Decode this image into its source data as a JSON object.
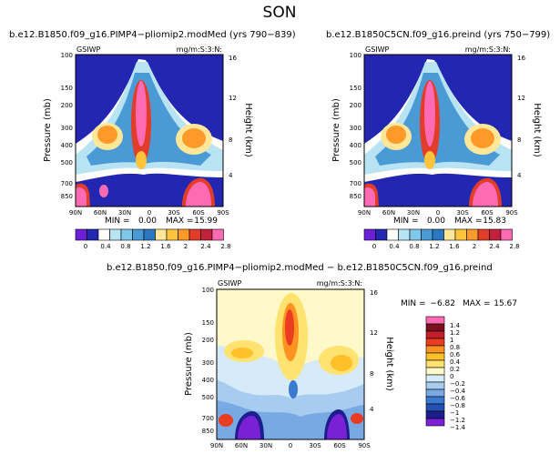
{
  "title": "SON",
  "colors": {
    "top": [
      "#6b1fd6",
      "#2326b0",
      "#ffffff",
      "#b7e3f2",
      "#7fc8ea",
      "#4a9ad6",
      "#2a78c2",
      "#ffe79a",
      "#ffc43c",
      "#ff9a2a",
      "#e33d2a",
      "#c4213c",
      "#ff6ab4"
    ],
    "diff": [
      "#7a21d6",
      "#1d1e8e",
      "#2450b2",
      "#3a7ad0",
      "#78a9e2",
      "#a8ccef",
      "#d6eafa",
      "#fff8c8",
      "#ffe270",
      "#ffc02a",
      "#ff9220",
      "#ea3c20",
      "#c41e2a",
      "#7a1020",
      "#ff6ab4"
    ]
  },
  "chart_data": [
    {
      "type": "heatmap",
      "title": "b.e12.B1850.f09_g16.PIMP4−pliomip2.modMed (yrs 790−839)",
      "left_label": "GSIWP",
      "right_label": "mg/m:S:3:N:",
      "xlabel": "",
      "ylabel": "Pressure (mb)",
      "y2label": "Height (km)",
      "xticks": [
        "90N",
        "60N",
        "30N",
        "0",
        "30S",
        "60S",
        "90S"
      ],
      "yticks": [
        "100",
        "150",
        "200",
        "300",
        "400",
        "500",
        "700",
        "850"
      ],
      "y2ticks": [
        "16",
        "12",
        "8",
        "4"
      ],
      "min_label": "MIN =",
      "min": "0.00",
      "max_label": "MAX =",
      "max": "15.99"
    },
    {
      "type": "heatmap",
      "title": "b.e12.B1850C5CN.f09_g16.preind (yrs 750−799)",
      "left_label": "GSIWP",
      "right_label": "mg/m:S:3:N:",
      "xlabel": "",
      "ylabel": "Pressure (mb)",
      "y2label": "Height (km)",
      "xticks": [
        "90N",
        "60N",
        "30N",
        "0",
        "30S",
        "60S",
        "90S"
      ],
      "yticks": [
        "100",
        "150",
        "200",
        "300",
        "400",
        "500",
        "700",
        "850"
      ],
      "y2ticks": [
        "16",
        "12",
        "8",
        "4"
      ],
      "min_label": "MIN =",
      "min": "0.00",
      "max_label": "MAX =",
      "max": "15.83"
    },
    {
      "type": "heatmap",
      "title": "b.e12.B1850.f09_g16.PIMP4−pliomip2.modMed − b.e12.B1850C5CN.f09_g16.preind",
      "left_label": "GSIWP",
      "right_label": "mg/m:S:3:N:",
      "xlabel": "",
      "ylabel": "Pressure (mb)",
      "y2label": "Height (km)",
      "xticks": [
        "90N",
        "60N",
        "30N",
        "0",
        "30S",
        "60S",
        "90S"
      ],
      "yticks": [
        "100",
        "150",
        "200",
        "300",
        "400",
        "500",
        "700",
        "850"
      ],
      "y2ticks": [
        "16",
        "12",
        "8",
        "4"
      ],
      "min_label": "MIN =",
      "min": "−6.82",
      "max_label": "MAX =",
      "max": "15.67"
    }
  ],
  "legend_top": {
    "labels": [
      "0",
      "0.4",
      "0.8",
      "1.2",
      "1.6",
      "2",
      "2.4",
      "2.8"
    ]
  },
  "legend_diff": {
    "labels": [
      "1.4",
      "1.2",
      "1",
      "0.8",
      "0.6",
      "0.4",
      "0.2",
      "0",
      "−0.2",
      "−0.4",
      "−0.6",
      "−0.8",
      "−1",
      "−1.2",
      "−1.4"
    ]
  }
}
